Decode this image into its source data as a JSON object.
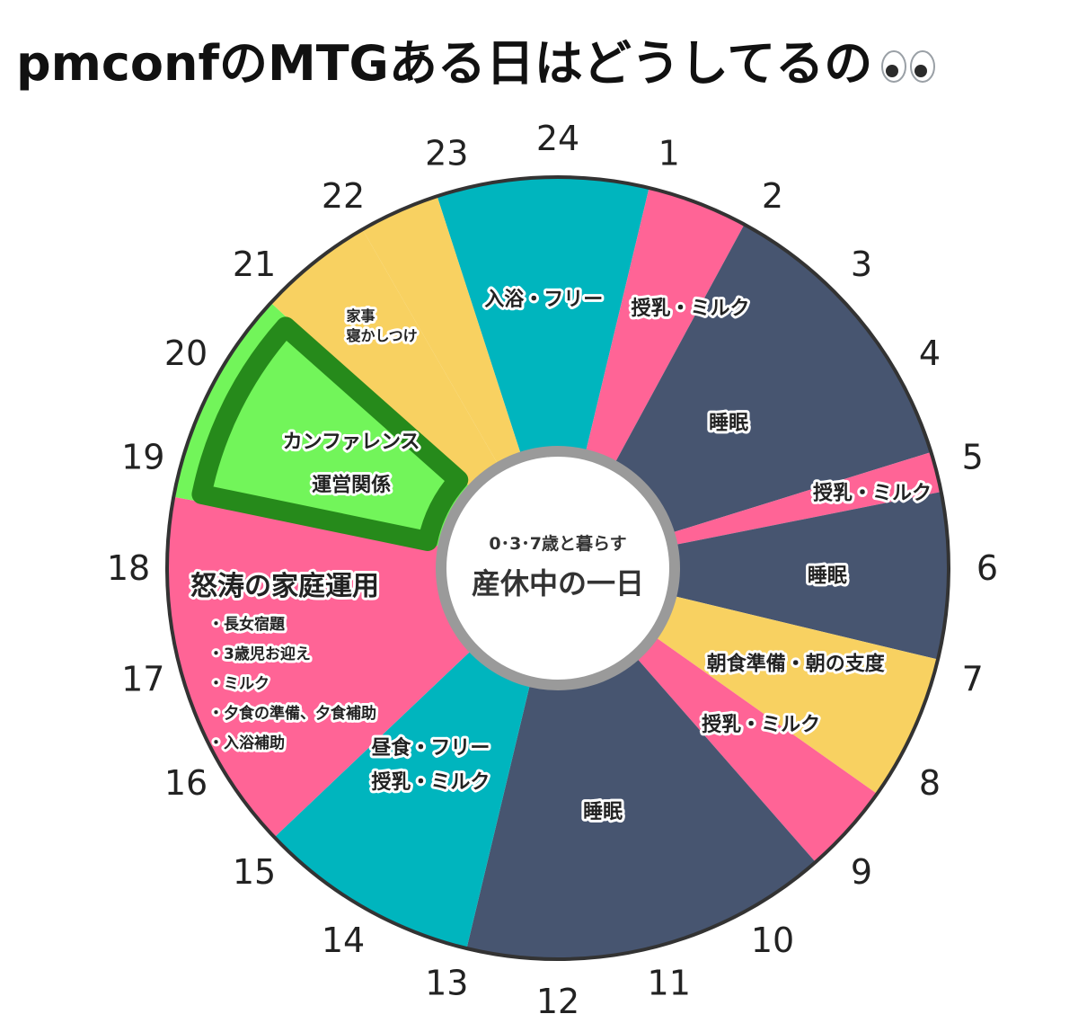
{
  "title": "pmconfのMTGある日はどうしてるの",
  "title_icon": "eyes-icon",
  "chart_data": {
    "type": "pie",
    "title": "pmconfのMTGある日はどうしてるの",
    "center": {
      "subtitle": "0･3･7歳と暮らす",
      "title": "産休中の一日"
    },
    "hour_labels": [
      "1",
      "2",
      "3",
      "4",
      "5",
      "6",
      "7",
      "8",
      "9",
      "10",
      "11",
      "12",
      "13",
      "14",
      "15",
      "16",
      "17",
      "18",
      "19",
      "20",
      "21",
      "22",
      "23",
      "24"
    ],
    "segments": [
      {
        "id": "bath-free",
        "start": 22.8,
        "end": 24.9,
        "color": "#00b5be",
        "lines": [
          "入浴・フリー"
        ]
      },
      {
        "id": "feed-1",
        "start": 0.9,
        "end": 1.9,
        "color": "#ff6496",
        "lines": [
          "授乳・ミルク"
        ]
      },
      {
        "id": "sleep-1",
        "start": 1.9,
        "end": 4.85,
        "color": "#475570",
        "lines": [
          "睡眠"
        ]
      },
      {
        "id": "feed-2",
        "start": 4.85,
        "end": 5.25,
        "color": "#ff6496",
        "lines": [
          "授乳・ミルク"
        ]
      },
      {
        "id": "sleep-2",
        "start": 5.25,
        "end": 6.9,
        "color": "#475570",
        "lines": [
          "睡眠"
        ]
      },
      {
        "id": "breakfast",
        "start": 6.9,
        "end": 8.35,
        "color": "#f8d161",
        "lines": [
          "朝食準備・朝の支度"
        ]
      },
      {
        "id": "feed-3",
        "start": 8.35,
        "end": 9.25,
        "color": "#ff6496",
        "lines": [
          "授乳・ミルク"
        ]
      },
      {
        "id": "sleep-3",
        "start": 9.25,
        "end": 12.9,
        "color": "#475570",
        "lines": [
          "睡眠"
        ]
      },
      {
        "id": "lunch-free",
        "start": 12.9,
        "end": 15.1,
        "color": "#00b5be",
        "lines": [
          "昼食・フリー",
          "授乳・ミルク"
        ]
      },
      {
        "id": "family-ops",
        "start": 15.1,
        "end": 18.7,
        "color": "#ff6496",
        "title": "怒涛の家庭運用",
        "lines": [
          "・長女宿題",
          "・3歳児お迎え",
          "・ミルク",
          "・夕食の準備、夕食補助",
          "・入浴補助"
        ]
      },
      {
        "id": "conference",
        "start": 18.7,
        "end": 20.85,
        "color": "#72f55a",
        "highlight": "#268a1b",
        "lines": [
          "カンファレンス",
          "運営関係"
        ]
      },
      {
        "id": "chores",
        "start": 20.85,
        "end": 22.0,
        "color": "#f8d161",
        "lines": [
          "家事",
          "寝かしつけ"
        ]
      },
      {
        "id": "bath-free-tail",
        "start": 22.0,
        "end": 22.8,
        "color": "#f8d161",
        "lines": []
      }
    ]
  }
}
